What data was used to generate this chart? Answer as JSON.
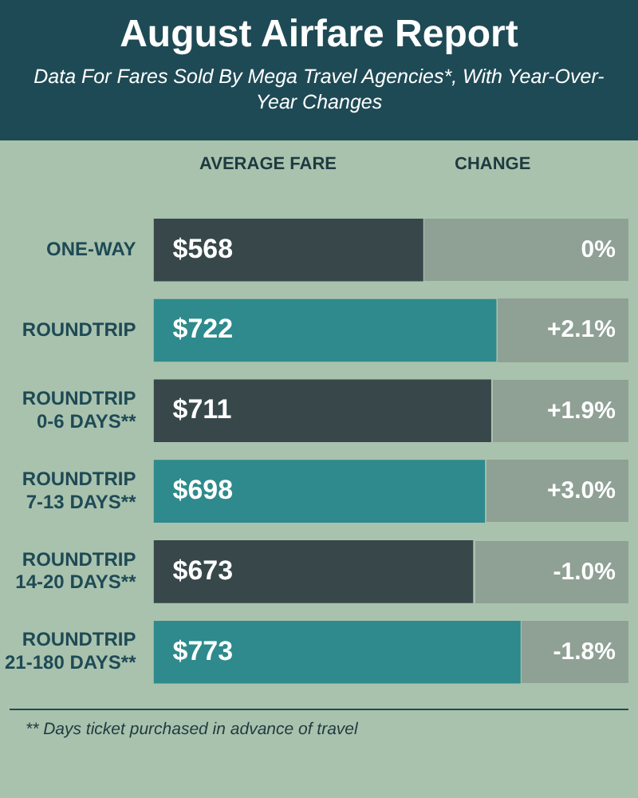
{
  "chart_data": {
    "type": "bar",
    "orientation": "horizontal",
    "title": "August Airfare Report",
    "subtitle": "Data For Fares Sold By Mega Travel Agencies*, With Year-Over-Year Changes",
    "xlabel": "AVERAGE FARE",
    "x2label": "CHANGE",
    "categories": [
      "ONE-WAY",
      "ROUNDTRIP",
      "ROUNDTRIP\n0-6 DAYS**",
      "ROUNDTRIP\n7-13 DAYS**",
      "ROUNDTRIP\n14-20 DAYS**",
      "ROUNDTRIP\n21-180 DAYS**"
    ],
    "values": [
      568,
      722,
      711,
      698,
      673,
      773
    ],
    "colors": [
      "#37474a",
      "#2e8a8c",
      "#37474a",
      "#2e8a8c",
      "#37474a",
      "#2e8a8c"
    ],
    "value_labels": [
      "$568",
      "$722",
      "$711",
      "$698",
      "$673",
      "$773"
    ],
    "xlim": [
      0,
      1000
    ],
    "tick_labels": "y",
    "legend": false,
    "annotations": [
      "0%",
      "+2.1%",
      "+1.9%",
      "+3.0%",
      "-1.0%",
      "-1.8%",
      "** Days ticket purchased in advance of travel"
    ]
  }
}
